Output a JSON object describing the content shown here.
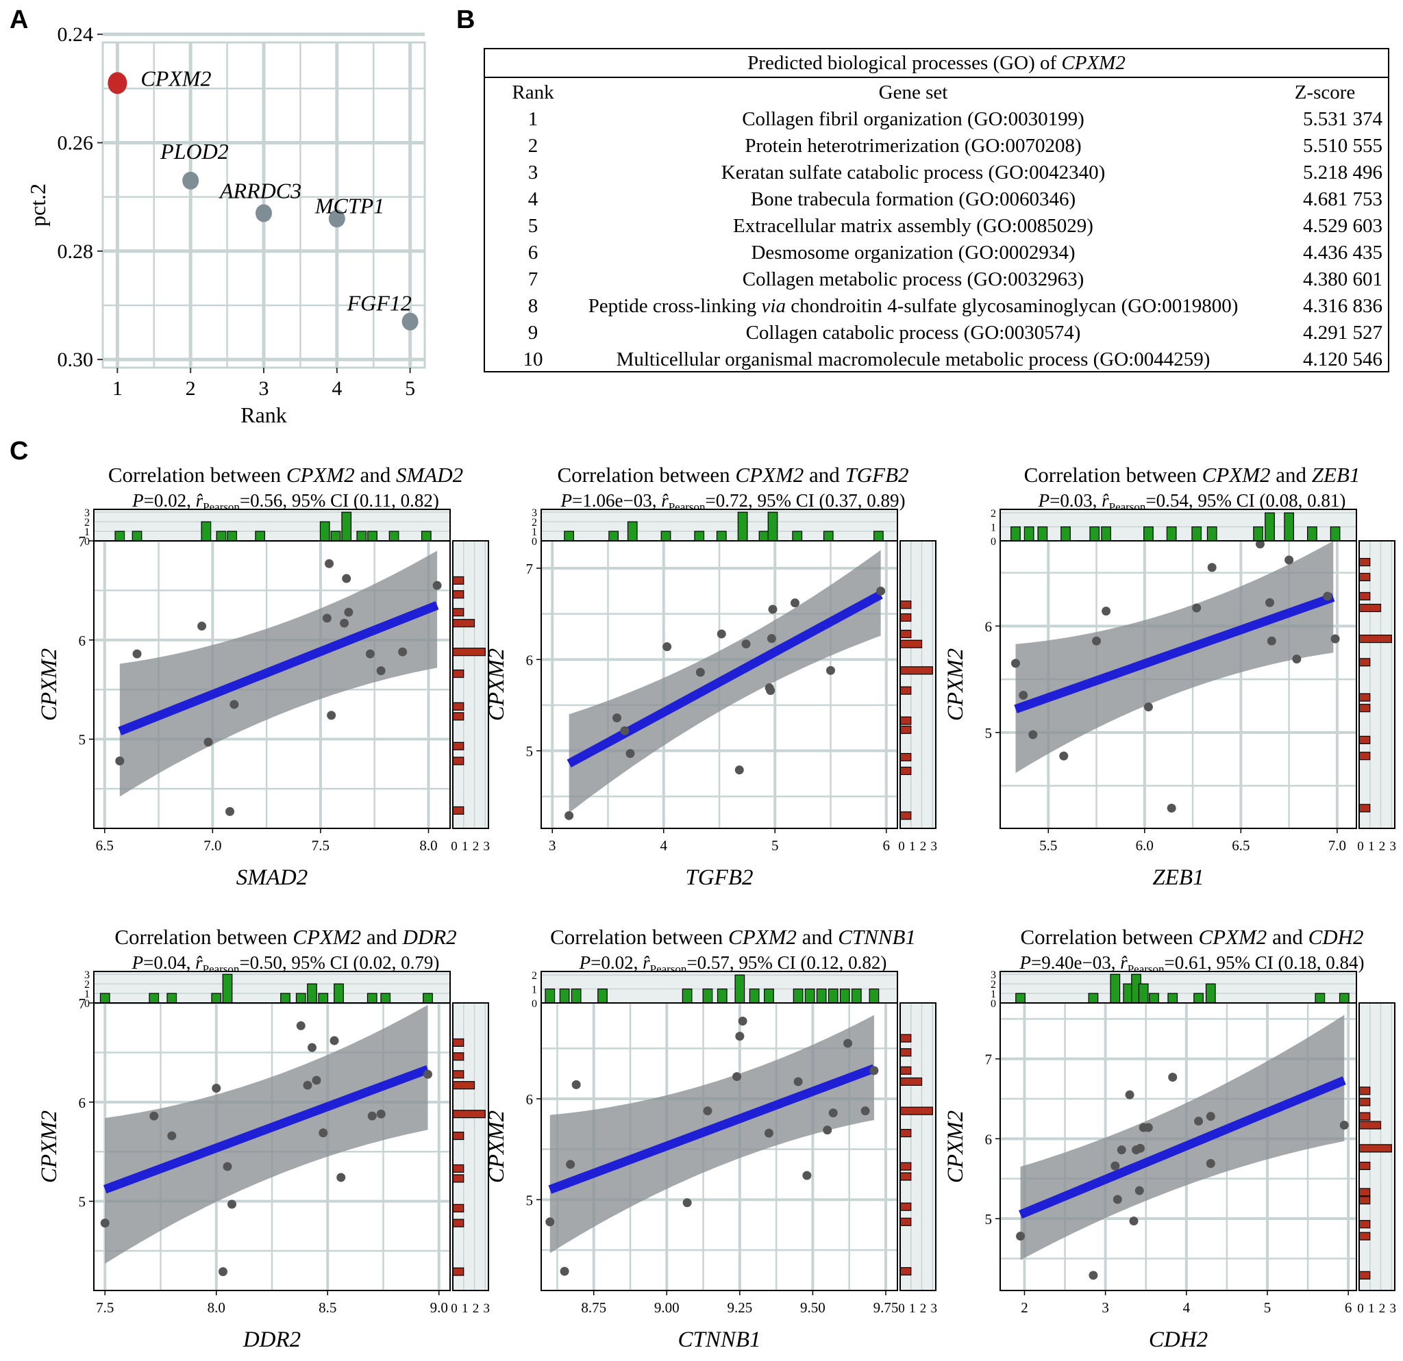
{
  "panel_labels": {
    "a": "A",
    "b": "B",
    "c": "C"
  },
  "colors": {
    "grid": "#c8d4d4",
    "panel_bg": "#ffffff",
    "highlight_point": "#c62828",
    "other_points": "#7f8e94",
    "scatter_points": "#555555",
    "fit_line": "#1f1fd6",
    "ci_band": "#8a8f93",
    "top_hist": "#1f9a1f",
    "side_hist": "#b0301d",
    "hist_bg": "#e9eeee"
  },
  "go_table": {
    "title_prefix": "Predicted biological processes (GO) of ",
    "title_gene": "CPXM2",
    "headers": {
      "rank": "Rank",
      "gene_set": "Gene set",
      "z": "Z-score"
    },
    "rows": [
      {
        "rank": "1",
        "gene_set": "Collagen fibril organization (GO:0030199)",
        "z": "5.531 374"
      },
      {
        "rank": "2",
        "gene_set": "Protein heterotrimerization (GO:0070208)",
        "z": "5.510 555"
      },
      {
        "rank": "3",
        "gene_set": "Keratan sulfate catabolic process (GO:0042340)",
        "z": "5.218 496"
      },
      {
        "rank": "4",
        "gene_set": "Bone trabecula formation (GO:0060346)",
        "z": "4.681 753"
      },
      {
        "rank": "5",
        "gene_set": "Extracellular matrix assembly (GO:0085029)",
        "z": "4.529 603"
      },
      {
        "rank": "6",
        "gene_set": "Desmosome organization (GO:0002934)",
        "z": "4.436 435"
      },
      {
        "rank": "7",
        "gene_set": "Collagen metabolic process (GO:0032963)",
        "z": "4.380 601"
      },
      {
        "rank": "8",
        "gene_set_pre": "Peptide cross-linking ",
        "gene_set_it": "via",
        "gene_set_post": " chondroitin 4-sulfate glycosaminoglycan (GO:0019800)",
        "z": "4.316 836"
      },
      {
        "rank": "9",
        "gene_set": "Collagen catabolic process (GO:0030574)",
        "z": "4.291 527"
      },
      {
        "rank": "10",
        "gene_set": "Multicellular organismal macromolecule metabolic process (GO:0044259)",
        "z": "4.120 546"
      }
    ]
  },
  "chart_data": [
    {
      "id": "A",
      "type": "scatter",
      "xlabel": "Rank",
      "ylabel": "pct.2",
      "xlim": [
        0.8,
        5.2
      ],
      "ylim": [
        0.2415,
        0.3015
      ],
      "y_reversed": true,
      "xticks": [
        1,
        2,
        3,
        4,
        5
      ],
      "yticks": [
        0.24,
        0.26,
        0.28,
        0.3
      ],
      "ytick_labels": [
        "0.24",
        "0.26",
        "0.28",
        "0.30"
      ],
      "points": [
        {
          "x": 1,
          "y": 0.249,
          "label": "CPXM2",
          "highlight": true
        },
        {
          "x": 2,
          "y": 0.267,
          "label": "PLOD2",
          "highlight": false
        },
        {
          "x": 3,
          "y": 0.273,
          "label": "ARRDC3",
          "highlight": false
        },
        {
          "x": 4,
          "y": 0.274,
          "label": "MCTP1",
          "highlight": false
        },
        {
          "x": 5,
          "y": 0.293,
          "label": "FGF12",
          "highlight": false
        }
      ]
    },
    {
      "id": "C1",
      "type": "scatter",
      "title_prefix": "Correlation between ",
      "gene_y": "CPXM2",
      "title_and": " and ",
      "gene_x": "SMAD2",
      "stats": {
        "p": "P",
        "p_val": "=0.02, ",
        "r": "r̂",
        "r_sub": "Pearson",
        "rest": "=0.56, 95% CI (0.11, 0.82)"
      },
      "xlabel": "SMAD2",
      "ylabel": "CPXM2",
      "xlim": [
        6.45,
        8.1
      ],
      "ylim": [
        4.1,
        7.0
      ],
      "xticks": [
        6.5,
        7.0,
        7.5,
        8.0
      ],
      "xtick_labels": [
        "6.5",
        "7.0",
        "7.5",
        "8.0"
      ],
      "yticks": [
        5,
        6,
        7
      ],
      "ytick_labels": [
        "5",
        "6",
        "7"
      ],
      "x": [
        6.57,
        6.65,
        6.95,
        6.98,
        7.08,
        7.1,
        7.53,
        7.54,
        7.55,
        7.61,
        7.62,
        7.63,
        7.73,
        7.78,
        7.88,
        8.04
      ],
      "y": [
        4.78,
        5.86,
        6.14,
        4.97,
        4.27,
        5.35,
        6.22,
        6.77,
        5.24,
        6.17,
        6.62,
        6.28,
        5.86,
        5.69,
        5.88,
        6.55
      ],
      "fit": {
        "x0": 6.57,
        "y0": 5.08,
        "x1": 8.04,
        "y1": 6.35
      },
      "ci": {
        "lo0": 4.42,
        "hi0": 5.76,
        "lo1": 5.72,
        "hi1": 6.9
      },
      "top_hist": {
        "ticks": [
          0,
          1,
          2,
          3
        ],
        "tick_labels": [
          "0",
          "1",
          "2",
          "3"
        ],
        "max": 3.3,
        "bins": [
          6.57,
          6.65,
          6.97,
          7.04,
          7.09,
          7.22,
          7.52,
          7.57,
          7.62,
          7.69,
          7.74,
          7.84,
          7.99
        ],
        "counts": [
          1,
          1,
          2,
          1,
          1,
          1,
          2,
          1,
          3,
          1,
          1,
          1,
          1
        ]
      },
      "side_hist": {
        "ticks": [
          0,
          1,
          2,
          3
        ],
        "tick_labels": [
          "0",
          "1",
          "2",
          "3"
        ],
        "max": 3.3,
        "bins": [
          4.28,
          4.78,
          4.93,
          5.23,
          5.33,
          5.66,
          5.88,
          6.17,
          6.28,
          6.46,
          6.6
        ],
        "counts": [
          1,
          1,
          1,
          1,
          1,
          1,
          3,
          2,
          1,
          1,
          1
        ]
      }
    },
    {
      "id": "C2",
      "type": "scatter",
      "title_prefix": "Correlation between ",
      "gene_y": "CPXM2",
      "title_and": " and ",
      "gene_x": "TGFB2",
      "stats": {
        "p": "P",
        "p_val": "=1.06e−03, ",
        "r": "r̂",
        "r_sub": "Pearson",
        "rest": "=0.72, 95% CI (0.37, 0.89)"
      },
      "xlabel": "TGFB2",
      "ylabel": "CPXM2",
      "xlim": [
        2.9,
        6.1
      ],
      "ylim": [
        4.15,
        7.3
      ],
      "xticks": [
        3,
        4,
        5,
        6
      ],
      "xtick_labels": [
        "3",
        "4",
        "5",
        "6"
      ],
      "yticks": [
        5,
        6,
        7
      ],
      "ytick_labels": [
        "5",
        "6",
        "7"
      ],
      "x": [
        3.15,
        3.58,
        3.65,
        3.7,
        4.03,
        4.33,
        4.52,
        4.68,
        4.74,
        4.95,
        4.96,
        4.98,
        4.97,
        5.18,
        5.5,
        5.95
      ],
      "y": [
        4.29,
        5.36,
        5.22,
        4.97,
        6.14,
        5.86,
        6.28,
        4.79,
        6.17,
        5.69,
        5.66,
        6.55,
        6.23,
        6.62,
        5.88,
        6.75
      ],
      "fit": {
        "x0": 3.15,
        "y0": 4.86,
        "x1": 5.95,
        "y1": 6.71
      },
      "ci": {
        "lo0": 4.32,
        "hi0": 5.4,
        "lo1": 6.26,
        "hi1": 7.2
      },
      "top_hist": {
        "ticks": [
          0,
          1,
          2,
          3
        ],
        "tick_labels": [
          "0",
          "1",
          "2",
          "3"
        ],
        "max": 3.3,
        "bins": [
          3.15,
          3.55,
          3.72,
          4.02,
          4.32,
          4.52,
          4.71,
          4.9,
          4.98,
          5.2,
          5.48,
          5.93
        ],
        "counts": [
          1,
          1,
          2,
          1,
          1,
          1,
          3,
          1,
          3,
          1,
          1,
          1
        ]
      },
      "side_hist": {
        "ticks": [
          0,
          1,
          2,
          3
        ],
        "tick_labels": [
          "0",
          "1",
          "2",
          "3"
        ],
        "max": 3.3,
        "bins": [
          4.29,
          4.78,
          4.93,
          5.23,
          5.33,
          5.66,
          5.88,
          6.17,
          6.28,
          6.46,
          6.6
        ],
        "counts": [
          1,
          1,
          1,
          1,
          1,
          1,
          3,
          2,
          1,
          1,
          1
        ]
      }
    },
    {
      "id": "C3",
      "type": "scatter",
      "title_prefix": "Correlation between ",
      "gene_y": "CPXM2",
      "title_and": " and ",
      "gene_x": "ZEB1",
      "stats": {
        "p": "P",
        "p_val": "=0.03, ",
        "r": "r̂",
        "r_sub": "Pearson",
        "rest": "=0.54, 95% CI (0.08, 0.81)"
      },
      "xlabel": "ZEB1",
      "ylabel": "CPXM2",
      "xlim": [
        5.25,
        7.1
      ],
      "ylim": [
        4.1,
        6.8
      ],
      "xticks": [
        5.5,
        6.0,
        6.5,
        7.0
      ],
      "xtick_labels": [
        "5.5",
        "6.0",
        "6.5",
        "7.0"
      ],
      "yticks": [
        5,
        6
      ],
      "ytick_labels": [
        "5",
        "6"
      ],
      "x": [
        5.33,
        5.37,
        5.42,
        5.58,
        5.75,
        5.8,
        6.02,
        6.14,
        6.27,
        6.35,
        6.6,
        6.65,
        6.66,
        6.75,
        6.79,
        6.95,
        6.99
      ],
      "y": [
        5.65,
        5.35,
        4.98,
        4.78,
        5.86,
        6.14,
        5.24,
        4.29,
        6.17,
        6.55,
        6.77,
        6.22,
        5.86,
        6.62,
        5.69,
        6.28,
        5.88
      ],
      "fit": {
        "x0": 5.33,
        "y0": 5.22,
        "x1": 6.98,
        "y1": 6.27
      },
      "ci": {
        "lo0": 4.62,
        "hi0": 5.83,
        "lo1": 5.75,
        "hi1": 6.8
      },
      "top_hist": {
        "ticks": [
          0,
          1,
          2
        ],
        "tick_labels": [
          "0",
          "1",
          "2"
        ],
        "max": 2.25,
        "bins": [
          5.33,
          5.4,
          5.47,
          5.59,
          5.74,
          5.8,
          6.02,
          6.14,
          6.27,
          6.35,
          6.59,
          6.65,
          6.75,
          6.87,
          6.99
        ],
        "counts": [
          1,
          1,
          1,
          1,
          1,
          1,
          1,
          1,
          1,
          1,
          1,
          2,
          2,
          1,
          1
        ]
      },
      "side_hist": {
        "ticks": [
          0,
          1,
          2,
          3
        ],
        "tick_labels": [
          "0",
          "1",
          "2",
          "3"
        ],
        "max": 3.3,
        "bins": [
          4.29,
          4.78,
          4.93,
          5.23,
          5.33,
          5.66,
          5.88,
          6.17,
          6.28,
          6.46,
          6.6
        ],
        "counts": [
          1,
          1,
          1,
          1,
          1,
          1,
          3,
          2,
          1,
          1,
          1
        ]
      }
    },
    {
      "id": "C4",
      "type": "scatter",
      "title_prefix": "Correlation between ",
      "gene_y": "CPXM2",
      "title_and": " and ",
      "gene_x": "DDR2",
      "stats": {
        "p": "P",
        "p_val": "=0.04, ",
        "r": "r̂",
        "r_sub": "Pearson",
        "rest": "=0.50, 95% CI (0.02, 0.79)"
      },
      "xlabel": "DDR2",
      "ylabel": "CPXM2",
      "xlim": [
        7.45,
        9.05
      ],
      "ylim": [
        4.1,
        7.0
      ],
      "xticks": [
        7.5,
        8.0,
        8.5,
        9.0
      ],
      "xtick_labels": [
        "7.5",
        "8.0",
        "8.5",
        "9.0"
      ],
      "yticks": [
        5,
        6,
        7
      ],
      "ytick_labels": [
        "5",
        "6",
        "7"
      ],
      "x": [
        7.5,
        7.72,
        7.8,
        8.0,
        8.03,
        8.05,
        8.07,
        8.38,
        8.41,
        8.43,
        8.45,
        8.48,
        8.53,
        8.56,
        8.7,
        8.74,
        8.95
      ],
      "y": [
        4.78,
        5.86,
        5.66,
        6.14,
        4.29,
        5.35,
        4.97,
        6.77,
        6.17,
        6.55,
        6.22,
        5.69,
        6.62,
        5.24,
        5.86,
        5.88,
        6.28
      ],
      "fit": {
        "x0": 7.5,
        "y0": 5.12,
        "x1": 8.95,
        "y1": 6.33
      },
      "ci": {
        "lo0": 4.37,
        "hi0": 5.84,
        "lo1": 5.72,
        "hi1": 6.98
      },
      "top_hist": {
        "ticks": [
          0,
          1,
          2,
          3
        ],
        "tick_labels": [
          "0",
          "1",
          "2",
          "3"
        ],
        "max": 3.3,
        "bins": [
          7.5,
          7.72,
          7.8,
          8.0,
          8.05,
          8.31,
          8.38,
          8.43,
          8.48,
          8.55,
          8.7,
          8.76,
          8.95
        ],
        "counts": [
          1,
          1,
          1,
          1,
          3,
          1,
          1,
          2,
          1,
          2,
          1,
          1,
          1
        ]
      },
      "side_hist": {
        "ticks": [
          0,
          1,
          2,
          3
        ],
        "tick_labels": [
          "0",
          "1",
          "2",
          "3"
        ],
        "max": 3.3,
        "bins": [
          4.29,
          4.78,
          4.93,
          5.23,
          5.33,
          5.66,
          5.88,
          6.17,
          6.28,
          6.46,
          6.6
        ],
        "counts": [
          1,
          1,
          1,
          1,
          1,
          1,
          3,
          2,
          1,
          1,
          1
        ]
      }
    },
    {
      "id": "C5",
      "type": "scatter",
      "title_prefix": "Correlation between ",
      "gene_y": "CPXM2",
      "title_and": " and ",
      "gene_x": "CTNNB1",
      "stats": {
        "p": "P",
        "p_val": "=0.02, ",
        "r": "r̂",
        "r_sub": "Pearson",
        "rest": "=0.57, 95% CI (0.12, 0.82)"
      },
      "xlabel": "CTNNB1",
      "ylabel": "CPXM2",
      "xlim": [
        8.57,
        9.79
      ],
      "ylim": [
        4.1,
        6.95
      ],
      "xticks": [
        8.75,
        9.0,
        9.25,
        9.5,
        9.75
      ],
      "xtick_labels": [
        "8.75",
        "9.00",
        "9.25",
        "9.50",
        "9.75"
      ],
      "yticks": [
        5,
        6
      ],
      "ytick_labels": [
        "5",
        "6"
      ],
      "x": [
        8.6,
        8.65,
        8.67,
        8.69,
        9.07,
        9.14,
        9.24,
        9.25,
        9.26,
        9.35,
        9.45,
        9.48,
        9.55,
        9.57,
        9.62,
        9.68,
        9.71
      ],
      "y": [
        4.78,
        4.29,
        5.35,
        6.14,
        4.97,
        5.88,
        6.22,
        6.62,
        6.77,
        5.66,
        6.17,
        5.24,
        5.69,
        5.86,
        6.55,
        5.88,
        6.28
      ],
      "fit": {
        "x0": 8.6,
        "y0": 5.1,
        "x1": 9.71,
        "y1": 6.3
      },
      "ci": {
        "lo0": 4.47,
        "hi0": 5.84,
        "lo1": 5.79,
        "hi1": 6.83
      },
      "top_hist": {
        "ticks": [
          0,
          1,
          2
        ],
        "tick_labels": [
          "0",
          "1",
          "2"
        ],
        "max": 2.25,
        "bins": [
          8.6,
          8.65,
          8.69,
          8.78,
          9.07,
          9.14,
          9.19,
          9.25,
          9.3,
          9.35,
          9.45,
          9.49,
          9.53,
          9.57,
          9.61,
          9.65,
          9.71
        ],
        "counts": [
          1,
          1,
          1,
          1,
          1,
          1,
          1,
          2,
          1,
          1,
          1,
          1,
          1,
          1,
          1,
          1,
          1
        ]
      },
      "side_hist": {
        "ticks": [
          0,
          1,
          2,
          3
        ],
        "tick_labels": [
          "0",
          "1",
          "2",
          "3"
        ],
        "max": 3.3,
        "bins": [
          4.29,
          4.78,
          4.93,
          5.23,
          5.33,
          5.66,
          5.88,
          6.17,
          6.28,
          6.46,
          6.6
        ],
        "counts": [
          1,
          1,
          1,
          1,
          1,
          1,
          3,
          2,
          1,
          1,
          1
        ]
      }
    },
    {
      "id": "C6",
      "type": "scatter",
      "title_prefix": "Correlation between ",
      "gene_y": "CPXM2",
      "title_and": " and ",
      "gene_x": "CDH2",
      "stats": {
        "p": "P",
        "p_val": "=9.40e−03, ",
        "r": "r̂",
        "r_sub": "Pearson",
        "rest": "=0.61, 95% CI (0.18, 0.84)"
      },
      "xlabel": "CDH2",
      "ylabel": "CPXM2",
      "xlim": [
        1.7,
        6.1
      ],
      "ylim": [
        4.1,
        7.7
      ],
      "xticks": [
        2,
        3,
        4,
        5,
        6
      ],
      "xtick_labels": [
        "2",
        "3",
        "4",
        "5",
        "6"
      ],
      "yticks": [
        5,
        6,
        7
      ],
      "ytick_labels": [
        "5",
        "6",
        "7"
      ],
      "x": [
        1.95,
        2.85,
        3.12,
        3.15,
        3.2,
        3.3,
        3.35,
        3.38,
        3.42,
        3.43,
        3.47,
        3.53,
        3.83,
        4.15,
        4.3,
        4.3,
        5.95
      ],
      "y": [
        4.78,
        4.29,
        5.66,
        5.24,
        5.86,
        6.55,
        4.97,
        5.86,
        5.35,
        5.88,
        6.14,
        6.14,
        6.77,
        6.22,
        6.28,
        5.69,
        6.17
      ],
      "fit": {
        "x0": 1.95,
        "y0": 5.05,
        "x1": 5.95,
        "y1": 6.73
      },
      "ci": {
        "lo0": 4.48,
        "hi0": 5.65,
        "lo1": 5.97,
        "hi1": 7.55
      },
      "top_hist": {
        "ticks": [
          0,
          1,
          2,
          3
        ],
        "tick_labels": [
          "0",
          "1",
          "2",
          "3"
        ],
        "max": 3.3,
        "bins": [
          1.95,
          2.85,
          3.12,
          3.28,
          3.38,
          3.47,
          3.6,
          3.83,
          4.15,
          4.3,
          5.65,
          5.95
        ],
        "counts": [
          1,
          1,
          3,
          2,
          3,
          2,
          1,
          1,
          1,
          2,
          1,
          1
        ]
      },
      "side_hist": {
        "ticks": [
          0,
          1,
          2,
          3
        ],
        "tick_labels": [
          "0",
          "1",
          "2",
          "3"
        ],
        "max": 3.3,
        "bins": [
          4.29,
          4.78,
          4.93,
          5.23,
          5.33,
          5.66,
          5.88,
          6.17,
          6.28,
          6.46,
          6.6
        ],
        "counts": [
          1,
          1,
          1,
          1,
          1,
          1,
          3,
          2,
          1,
          1,
          1
        ]
      }
    }
  ]
}
